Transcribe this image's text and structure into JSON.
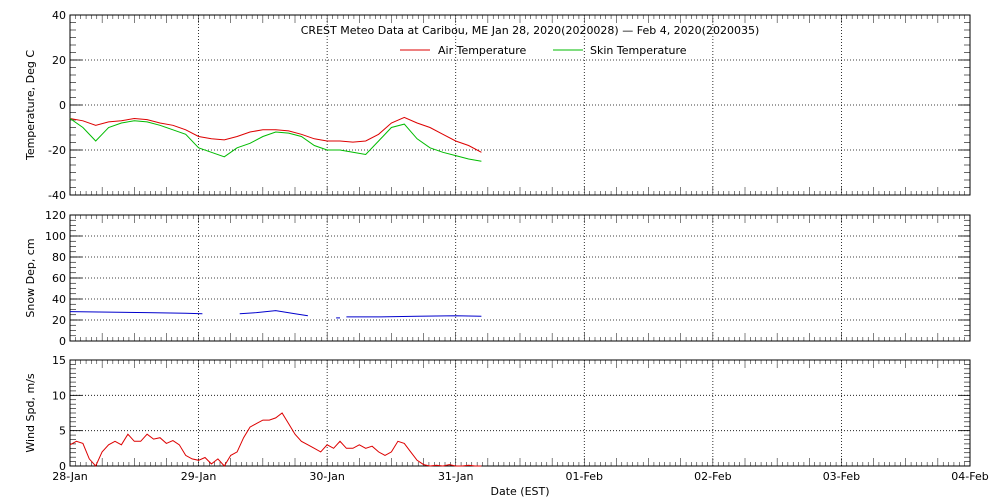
{
  "title": "CREST Meteo Data at Caribou, ME   Jan 28, 2020(2020028) — Feb  4, 2020(2020035)",
  "xlabel": "Date (EST)",
  "x_tick_labels": [
    "28-Jan",
    "29-Jan",
    "30-Jan",
    "31-Jan",
    "01-Feb",
    "02-Feb",
    "03-Feb",
    "04-Feb"
  ],
  "colors": {
    "air": "#dd0000",
    "skin": "#00bb00",
    "snow": "#0000cc",
    "wind": "#dd0000",
    "axes": "#000000"
  },
  "chart_data": [
    {
      "type": "line",
      "title": "CREST Meteo Data at Caribou, ME   Jan 28, 2020(2020028) — Feb  4, 2020(2020035)",
      "xlabel": "Date (EST)",
      "ylabel": "Temperature, Deg C",
      "x_unit": "days since 28-Jan",
      "xlim": [
        0,
        7
      ],
      "ylim": [
        -40,
        40
      ],
      "yticks": [
        -40,
        -20,
        0,
        20,
        40
      ],
      "grid": true,
      "legend": "top-center",
      "series": [
        {
          "name": "Air Temperature",
          "color": "#dd0000",
          "x": [
            0,
            0.1,
            0.2,
            0.3,
            0.4,
            0.5,
            0.6,
            0.7,
            0.8,
            0.9,
            1.0,
            1.1,
            1.2,
            1.3,
            1.4,
            1.5,
            1.6,
            1.7,
            1.8,
            1.9,
            2.0,
            2.1,
            2.2,
            2.3,
            2.4,
            2.5,
            2.6,
            2.7,
            2.8,
            2.9,
            3.0,
            3.1,
            3.2
          ],
          "y": [
            -6,
            -7,
            -9,
            -7.5,
            -7,
            -6,
            -6.5,
            -8,
            -9,
            -11,
            -14,
            -15,
            -15.5,
            -14,
            -12,
            -11,
            -11,
            -11.5,
            -13,
            -15,
            -16,
            -16,
            -16.5,
            -16,
            -13,
            -8,
            -5.5,
            -8,
            -10,
            -13,
            -16,
            -18,
            -21
          ]
        },
        {
          "name": "Skin Temperature",
          "color": "#00bb00",
          "x": [
            0,
            0.1,
            0.2,
            0.25,
            0.3,
            0.4,
            0.5,
            0.6,
            0.7,
            0.8,
            0.9,
            1.0,
            1.1,
            1.2,
            1.3,
            1.4,
            1.5,
            1.6,
            1.7,
            1.8,
            1.9,
            2.0,
            2.1,
            2.2,
            2.3,
            2.4,
            2.5,
            2.6,
            2.7,
            2.8,
            2.9,
            3.0,
            3.1,
            3.2
          ],
          "y": [
            -6,
            -10,
            -16,
            -13,
            -10,
            -8,
            -7,
            -7.5,
            -9,
            -11,
            -13,
            -19,
            -21,
            -23,
            -19,
            -17,
            -14,
            -12,
            -12.5,
            -14,
            -18,
            -20,
            -20,
            -21,
            -22,
            -16,
            -10,
            -8.5,
            -15,
            -19,
            -21,
            -22.5,
            -24,
            -25
          ]
        }
      ]
    },
    {
      "type": "line",
      "ylabel": "Snow Dep, cm",
      "x_unit": "days since 28-Jan",
      "xlim": [
        0,
        7
      ],
      "ylim": [
        0,
        120
      ],
      "yticks": [
        0,
        20,
        40,
        60,
        80,
        100,
        120
      ],
      "grid": true,
      "series": [
        {
          "name": "",
          "color": "#0000cc",
          "segments": [
            {
              "x": [
                0,
                0.3,
                0.6,
                0.9,
                1.03
              ],
              "y": [
                28,
                27.5,
                27,
                26.5,
                26
              ]
            },
            {
              "x": [
                1.32,
                1.45,
                1.6,
                1.75,
                1.85
              ],
              "y": [
                26,
                27,
                29,
                26,
                24
              ]
            },
            {
              "x": [
                2.07,
                2.1
              ],
              "y": [
                22,
                22
              ]
            },
            {
              "x": [
                2.15,
                2.4,
                2.7,
                3.0,
                3.2
              ],
              "y": [
                23,
                23,
                23.5,
                24,
                23.5
              ]
            }
          ]
        }
      ]
    },
    {
      "type": "line",
      "ylabel": "Wind Spd, m/s",
      "x_unit": "days since 28-Jan",
      "xlim": [
        0,
        7
      ],
      "ylim": [
        0,
        15
      ],
      "yticks": [
        0,
        5,
        10,
        15
      ],
      "grid": true,
      "series": [
        {
          "name": "",
          "color": "#dd0000",
          "x": [
            0,
            0.05,
            0.1,
            0.15,
            0.2,
            0.25,
            0.3,
            0.35,
            0.4,
            0.45,
            0.5,
            0.55,
            0.6,
            0.65,
            0.7,
            0.75,
            0.8,
            0.85,
            0.9,
            0.95,
            1.0,
            1.05,
            1.1,
            1.15,
            1.2,
            1.25,
            1.3,
            1.35,
            1.4,
            1.45,
            1.5,
            1.55,
            1.6,
            1.65,
            1.7,
            1.75,
            1.8,
            1.85,
            1.9,
            1.95,
            2.0,
            2.05,
            2.1,
            2.15,
            2.2,
            2.25,
            2.3,
            2.35,
            2.4,
            2.45,
            2.5,
            2.55,
            2.6,
            2.65,
            2.7,
            2.75,
            2.8,
            2.85,
            2.9,
            2.95,
            3.0,
            3.05,
            3.1,
            3.15,
            3.2
          ],
          "y": [
            3,
            3.5,
            3.2,
            1,
            0,
            2,
            3,
            3.5,
            3,
            4.5,
            3.5,
            3.5,
            4.5,
            3.8,
            4,
            3.2,
            3.6,
            3,
            1.5,
            1,
            0.8,
            1.2,
            0.3,
            1,
            0,
            1.5,
            2,
            4,
            5.5,
            6,
            6.5,
            6.5,
            6.8,
            7.5,
            6,
            4.5,
            3.5,
            3,
            2.5,
            2,
            3,
            2.5,
            3.5,
            2.5,
            2.5,
            3,
            2.5,
            2.8,
            2,
            1.5,
            2,
            3.5,
            3.2,
            2,
            0.8,
            0.2,
            0,
            0.1,
            0,
            0.2,
            0,
            0,
            0.1,
            0,
            0
          ]
        }
      ]
    }
  ]
}
